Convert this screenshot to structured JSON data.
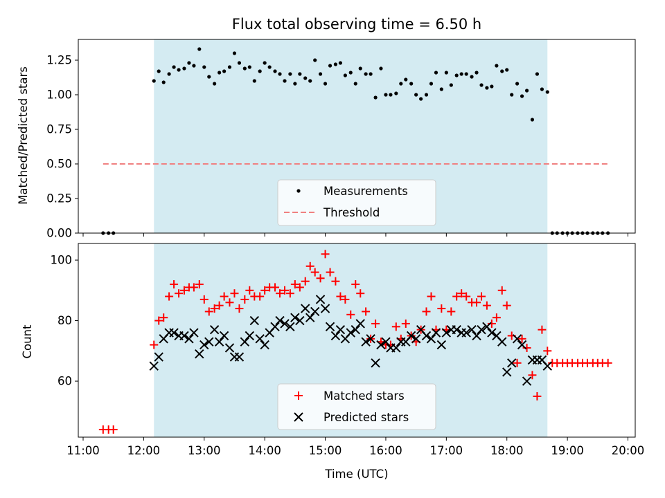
{
  "chart_data": [
    {
      "type": "scatter",
      "title": "Flux total observing time = 6.50 h",
      "xlabel": "",
      "ylabel": "Matched/Predicted stars",
      "ylim": [
        0,
        1.4
      ],
      "xlim": [
        10.92,
        20.12
      ],
      "yticks": [
        0.0,
        0.25,
        0.5,
        0.75,
        1.0,
        1.25
      ],
      "ytick_labels": [
        "0.00",
        "0.25",
        "0.50",
        "0.75",
        "1.00",
        "1.25"
      ],
      "xticks": [
        11,
        12,
        13,
        14,
        15,
        16,
        17,
        18,
        19,
        20
      ],
      "show_xtick_labels": false,
      "shaded_span": [
        12.17,
        18.67
      ],
      "shade_color": "#d4ebf2",
      "legend": "lower-center",
      "series": [
        {
          "name": "Measurements",
          "kind": "scatter",
          "color": "#000000",
          "x": [
            11.33,
            11.42,
            11.5,
            12.17,
            12.25,
            12.33,
            12.42,
            12.5,
            12.58,
            12.67,
            12.75,
            12.83,
            12.92,
            13.0,
            13.08,
            13.17,
            13.25,
            13.33,
            13.42,
            13.5,
            13.58,
            13.67,
            13.75,
            13.83,
            13.92,
            14.0,
            14.08,
            14.17,
            14.25,
            14.33,
            14.42,
            14.5,
            14.58,
            14.67,
            14.75,
            14.83,
            14.92,
            15.0,
            15.08,
            15.17,
            15.25,
            15.33,
            15.42,
            15.5,
            15.58,
            15.67,
            15.75,
            15.83,
            15.92,
            16.0,
            16.08,
            16.17,
            16.25,
            16.33,
            16.42,
            16.5,
            16.58,
            16.67,
            16.75,
            16.83,
            16.92,
            17.0,
            17.08,
            17.17,
            17.25,
            17.33,
            17.42,
            17.5,
            17.58,
            17.67,
            17.75,
            17.83,
            17.92,
            18.0,
            18.08,
            18.17,
            18.25,
            18.33,
            18.42,
            18.5,
            18.58,
            18.67,
            18.75,
            18.83,
            18.92,
            19.0,
            19.08,
            19.17,
            19.25,
            19.33,
            19.42,
            19.5,
            19.58,
            19.67
          ],
          "y": [
            0,
            0,
            0,
            1.1,
            1.17,
            1.09,
            1.15,
            1.2,
            1.18,
            1.19,
            1.23,
            1.21,
            1.33,
            1.2,
            1.13,
            1.08,
            1.16,
            1.17,
            1.2,
            1.3,
            1.23,
            1.19,
            1.2,
            1.1,
            1.17,
            1.23,
            1.2,
            1.17,
            1.15,
            1.1,
            1.15,
            1.08,
            1.15,
            1.12,
            1.1,
            1.25,
            1.15,
            1.08,
            1.21,
            1.22,
            1.23,
            1.14,
            1.16,
            1.08,
            1.19,
            1.15,
            1.15,
            0.98,
            1.19,
            1.0,
            1.0,
            1.01,
            1.08,
            1.11,
            1.08,
            1.0,
            0.97,
            1.0,
            1.08,
            1.16,
            1.04,
            1.16,
            1.07,
            1.14,
            1.15,
            1.15,
            1.13,
            1.16,
            1.07,
            1.05,
            1.06,
            1.21,
            1.17,
            1.18,
            1.0,
            1.08,
            0.99,
            1.03,
            0.82,
            1.15,
            1.04,
            1.02,
            0,
            0,
            0,
            0,
            0,
            0,
            0,
            0,
            0,
            0,
            0,
            0
          ]
        },
        {
          "name": "Threshold",
          "kind": "line",
          "style": "dashed",
          "color": "#f08080",
          "x": [
            11.33,
            19.67
          ],
          "y": [
            0.5,
            0.5
          ]
        }
      ]
    },
    {
      "type": "scatter",
      "title": "",
      "xlabel": "Time (UTC)",
      "ylabel": "Count",
      "ylim": [
        41.5,
        105.5
      ],
      "xlim": [
        10.92,
        20.12
      ],
      "yticks": [
        60,
        80,
        100
      ],
      "ytick_labels": [
        "60",
        "80",
        "100"
      ],
      "xticks": [
        11,
        12,
        13,
        14,
        15,
        16,
        17,
        18,
        19,
        20
      ],
      "xtick_labels": [
        "11:00",
        "12:00",
        "13:00",
        "14:00",
        "15:00",
        "16:00",
        "17:00",
        "18:00",
        "19:00",
        "20:00"
      ],
      "shaded_span": [
        12.17,
        18.67
      ],
      "shade_color": "#d4ebf2",
      "legend": "lower-center",
      "series": [
        {
          "name": "Matched stars",
          "marker": "plus",
          "color": "#ff0000",
          "x": [
            11.33,
            11.42,
            11.5,
            12.17,
            12.25,
            12.33,
            12.42,
            12.5,
            12.58,
            12.67,
            12.75,
            12.83,
            12.92,
            13.0,
            13.08,
            13.17,
            13.25,
            13.33,
            13.42,
            13.5,
            13.58,
            13.67,
            13.75,
            13.83,
            13.92,
            14.0,
            14.08,
            14.17,
            14.25,
            14.33,
            14.42,
            14.5,
            14.58,
            14.67,
            14.75,
            14.83,
            14.92,
            15.0,
            15.08,
            15.17,
            15.25,
            15.33,
            15.42,
            15.5,
            15.58,
            15.67,
            15.75,
            15.83,
            15.92,
            16.0,
            16.08,
            16.17,
            16.25,
            16.33,
            16.42,
            16.5,
            16.58,
            16.67,
            16.75,
            16.83,
            16.92,
            17.0,
            17.08,
            17.17,
            17.25,
            17.33,
            17.42,
            17.5,
            17.58,
            17.67,
            17.75,
            17.83,
            17.92,
            18.0,
            18.08,
            18.17,
            18.25,
            18.33,
            18.42,
            18.5,
            18.58,
            18.67,
            18.75,
            18.83,
            18.92,
            19.0,
            19.08,
            19.17,
            19.25,
            19.33,
            19.42,
            19.5,
            19.58,
            19.67
          ],
          "y": [
            44,
            44,
            44,
            72,
            80,
            81,
            88,
            92,
            89,
            90,
            91,
            91,
            92,
            87,
            83,
            84,
            85,
            88,
            86,
            89,
            84,
            87,
            90,
            88,
            88,
            90,
            91,
            91,
            89,
            90,
            89,
            92,
            91,
            93,
            98,
            96,
            94,
            102,
            96,
            93,
            88,
            87,
            82,
            92,
            89,
            83,
            74,
            79,
            73,
            72,
            72,
            78,
            74,
            79,
            75,
            73,
            77,
            83,
            88,
            77,
            84,
            77,
            83,
            88,
            89,
            88,
            86,
            86,
            88,
            85,
            79,
            81,
            90,
            85,
            75,
            66,
            74,
            71,
            62,
            55,
            77,
            70,
            66,
            66,
            66,
            66,
            66,
            66,
            66,
            66,
            66,
            66,
            66,
            66
          ]
        },
        {
          "name": "Predicted stars",
          "marker": "x",
          "color": "#000000",
          "x": [
            12.17,
            12.25,
            12.33,
            12.42,
            12.5,
            12.58,
            12.67,
            12.75,
            12.83,
            12.92,
            13.0,
            13.08,
            13.17,
            13.25,
            13.33,
            13.42,
            13.5,
            13.58,
            13.67,
            13.75,
            13.83,
            13.92,
            14.0,
            14.08,
            14.17,
            14.25,
            14.33,
            14.42,
            14.5,
            14.58,
            14.67,
            14.75,
            14.83,
            14.92,
            15.0,
            15.08,
            15.17,
            15.25,
            15.33,
            15.42,
            15.5,
            15.58,
            15.67,
            15.75,
            15.83,
            15.92,
            16.0,
            16.08,
            16.17,
            16.25,
            16.33,
            16.42,
            16.5,
            16.58,
            16.67,
            16.75,
            16.83,
            16.92,
            17.0,
            17.08,
            17.17,
            17.25,
            17.33,
            17.42,
            17.5,
            17.58,
            17.67,
            17.75,
            17.83,
            17.92,
            18.0,
            18.08,
            18.17,
            18.25,
            18.33,
            18.42,
            18.5,
            18.58,
            18.67
          ],
          "y": [
            65,
            68,
            74,
            76,
            76,
            75,
            75,
            74,
            76,
            69,
            72,
            73,
            77,
            73,
            75,
            71,
            68,
            68,
            73,
            75,
            80,
            74,
            72,
            76,
            78,
            80,
            79,
            78,
            81,
            80,
            84,
            81,
            83,
            87,
            84,
            78,
            75,
            77,
            74,
            76,
            77,
            79,
            73,
            74,
            66,
            72,
            73,
            71,
            71,
            73,
            73,
            75,
            74,
            77,
            75,
            74,
            76,
            72,
            76,
            77,
            77,
            76,
            76,
            77,
            75,
            77,
            78,
            76,
            75,
            73,
            63,
            66,
            74,
            72,
            60,
            67,
            67,
            67,
            65
          ]
        }
      ]
    }
  ]
}
